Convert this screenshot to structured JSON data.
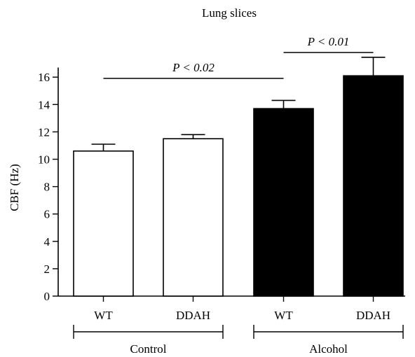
{
  "chart_data": {
    "type": "bar",
    "title": "Lung slices",
    "ylabel": "CBF (Hz)",
    "xlabel": "",
    "ylim": [
      0,
      16
    ],
    "yticks": [
      0,
      2,
      4,
      6,
      8,
      10,
      12,
      14,
      16
    ],
    "categories": [
      "WT",
      "DDAH",
      "WT",
      "DDAH"
    ],
    "values": [
      10.6,
      11.5,
      13.7,
      16.1
    ],
    "errors": [
      0.5,
      0.3,
      0.6,
      1.35
    ],
    "bar_fills": [
      "#ffffff",
      "#ffffff",
      "#000000",
      "#000000"
    ],
    "groups": [
      {
        "label": "Control",
        "members": [
          0,
          1
        ]
      },
      {
        "label": "Alcohol",
        "members": [
          2,
          3
        ]
      }
    ],
    "annotations": [
      {
        "text": "P < 0.02",
        "from": 0,
        "to": 2
      },
      {
        "text": "P < 0.01",
        "from": 2,
        "to": 3
      }
    ],
    "grid": false,
    "legend": "none"
  }
}
